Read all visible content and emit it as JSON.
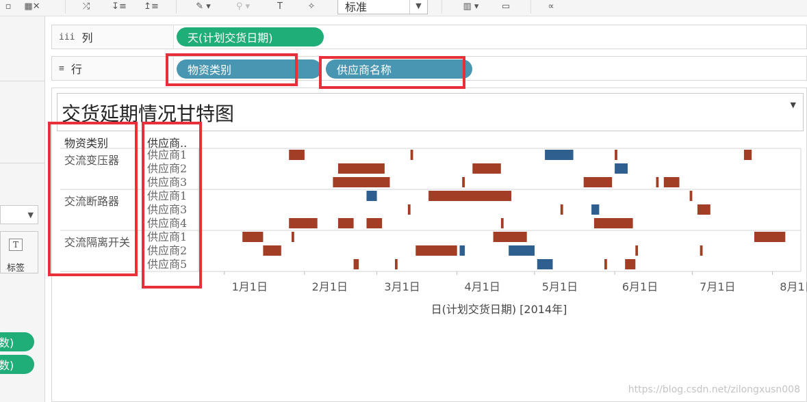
{
  "toolbar": {
    "fit_select": "标准",
    "colors": {
      "background": "#f5f5f5",
      "icon": "#555555"
    },
    "icons": [
      "save-icon",
      "clear-sheet-icon",
      "swap-icon",
      "sort-ascending-icon",
      "sort-descending-icon",
      "highlight-icon",
      "group-icon",
      "label-icon",
      "pin-icon",
      "show-me-icon",
      "presentation-icon",
      "share-icon"
    ]
  },
  "shelves": {
    "columns": {
      "label": "列",
      "pills": [
        "天(计划交货日期)"
      ]
    },
    "rows": {
      "label": "行",
      "pills": [
        "物资类别",
        "供应商名称"
      ]
    }
  },
  "left_panel": {
    "label_card": "标签",
    "pills": [
      "数)",
      "数)"
    ]
  },
  "sheet": {
    "title": "交货延期情况甘特图",
    "header_category": "物资类别",
    "header_supplier": "供应商..",
    "x_axis_title": "日(计划交货日期) [2014年]"
  },
  "chart_data": {
    "type": "gantt",
    "x_axis": {
      "range": [
        "2013-12-22",
        "2014-08-12"
      ],
      "ticks": [
        {
          "label": "1月1日",
          "date": "2014-01-01"
        },
        {
          "label": "2月1日",
          "date": "2014-02-01"
        },
        {
          "label": "3月1日",
          "date": "2014-03-01"
        },
        {
          "label": "4月1日",
          "date": "2014-04-01"
        },
        {
          "label": "5月1日",
          "date": "2014-05-01"
        },
        {
          "label": "6月1日",
          "date": "2014-06-01"
        },
        {
          "label": "7月1日",
          "date": "2014-07-01"
        },
        {
          "label": "8月1日",
          "date": "2014-08-01"
        }
      ]
    },
    "colors": {
      "late": "#a23e25",
      "early": "#2f5f8e",
      "grid": "#d3d3d3"
    },
    "groups": [
      {
        "category": "交流变压器",
        "rows": [
          {
            "supplier": "供应商1",
            "bars": [
              {
                "start": "2014-01-26",
                "end": "2014-01-31",
                "status": "late"
              },
              {
                "start": "2014-03-14",
                "end": "2014-03-14",
                "status": "late"
              },
              {
                "start": "2014-05-05",
                "end": "2014-05-15",
                "status": "early"
              },
              {
                "start": "2014-06-01",
                "end": "2014-06-01",
                "status": "late"
              },
              {
                "start": "2014-07-21",
                "end": "2014-07-23",
                "status": "late"
              }
            ]
          },
          {
            "supplier": "供应商2",
            "bars": [
              {
                "start": "2014-02-14",
                "end": "2014-03-03",
                "status": "late"
              },
              {
                "start": "2014-04-07",
                "end": "2014-04-17",
                "status": "late"
              },
              {
                "start": "2014-06-01",
                "end": "2014-06-05",
                "status": "early"
              }
            ]
          },
          {
            "supplier": "供应商3",
            "bars": [
              {
                "start": "2014-02-12",
                "end": "2014-03-05",
                "status": "late"
              },
              {
                "start": "2014-04-03",
                "end": "2014-04-03",
                "status": "late"
              },
              {
                "start": "2014-05-20",
                "end": "2014-05-30",
                "status": "late"
              },
              {
                "start": "2014-06-17",
                "end": "2014-06-17",
                "status": "late"
              },
              {
                "start": "2014-06-20",
                "end": "2014-06-25",
                "status": "late"
              }
            ]
          }
        ]
      },
      {
        "category": "交流断路器",
        "rows": [
          {
            "supplier": "供应商1",
            "bars": [
              {
                "start": "2014-02-25",
                "end": "2014-02-28",
                "status": "early"
              },
              {
                "start": "2014-03-21",
                "end": "2014-04-21",
                "status": "late"
              },
              {
                "start": "2014-06-30",
                "end": "2014-06-30",
                "status": "late"
              }
            ]
          },
          {
            "supplier": "供应商3",
            "bars": [
              {
                "start": "2014-03-13",
                "end": "2014-03-13",
                "status": "late"
              },
              {
                "start": "2014-05-11",
                "end": "2014-05-11",
                "status": "late"
              },
              {
                "start": "2014-05-23",
                "end": "2014-05-25",
                "status": "early"
              },
              {
                "start": "2014-07-03",
                "end": "2014-07-07",
                "status": "late"
              }
            ]
          },
          {
            "supplier": "供应商4",
            "bars": [
              {
                "start": "2014-01-26",
                "end": "2014-02-05",
                "status": "late"
              },
              {
                "start": "2014-02-14",
                "end": "2014-02-19",
                "status": "late"
              },
              {
                "start": "2014-02-25",
                "end": "2014-03-02",
                "status": "late"
              },
              {
                "start": "2014-04-18",
                "end": "2014-04-18",
                "status": "late"
              },
              {
                "start": "2014-05-24",
                "end": "2014-06-07",
                "status": "late"
              }
            ]
          }
        ]
      },
      {
        "category": "交流隔离开关",
        "rows": [
          {
            "supplier": "供应商1",
            "bars": [
              {
                "start": "2014-01-08",
                "end": "2014-01-15",
                "status": "late"
              },
              {
                "start": "2014-01-27",
                "end": "2014-01-27",
                "status": "late"
              },
              {
                "start": "2014-04-15",
                "end": "2014-04-27",
                "status": "late"
              },
              {
                "start": "2014-07-25",
                "end": "2014-08-05",
                "status": "late"
              }
            ]
          },
          {
            "supplier": "供应商2",
            "bars": [
              {
                "start": "2014-01-16",
                "end": "2014-01-22",
                "status": "late"
              },
              {
                "start": "2014-03-16",
                "end": "2014-03-31",
                "status": "late"
              },
              {
                "start": "2014-04-02",
                "end": "2014-04-03",
                "status": "early"
              },
              {
                "start": "2014-04-21",
                "end": "2014-04-30",
                "status": "early"
              },
              {
                "start": "2014-06-09",
                "end": "2014-06-09",
                "status": "late"
              },
              {
                "start": "2014-07-04",
                "end": "2014-07-04",
                "status": "late"
              }
            ]
          },
          {
            "supplier": "供应商5",
            "bars": [
              {
                "start": "2014-02-20",
                "end": "2014-02-21",
                "status": "late"
              },
              {
                "start": "2014-03-08",
                "end": "2014-03-08",
                "status": "late"
              },
              {
                "start": "2014-05-02",
                "end": "2014-05-07",
                "status": "early"
              },
              {
                "start": "2014-05-28",
                "end": "2014-05-28",
                "status": "late"
              },
              {
                "start": "2014-06-05",
                "end": "2014-06-08",
                "status": "late"
              }
            ]
          }
        ]
      }
    ]
  },
  "watermark": "https://blog.csdn.net/zilongxusn008"
}
